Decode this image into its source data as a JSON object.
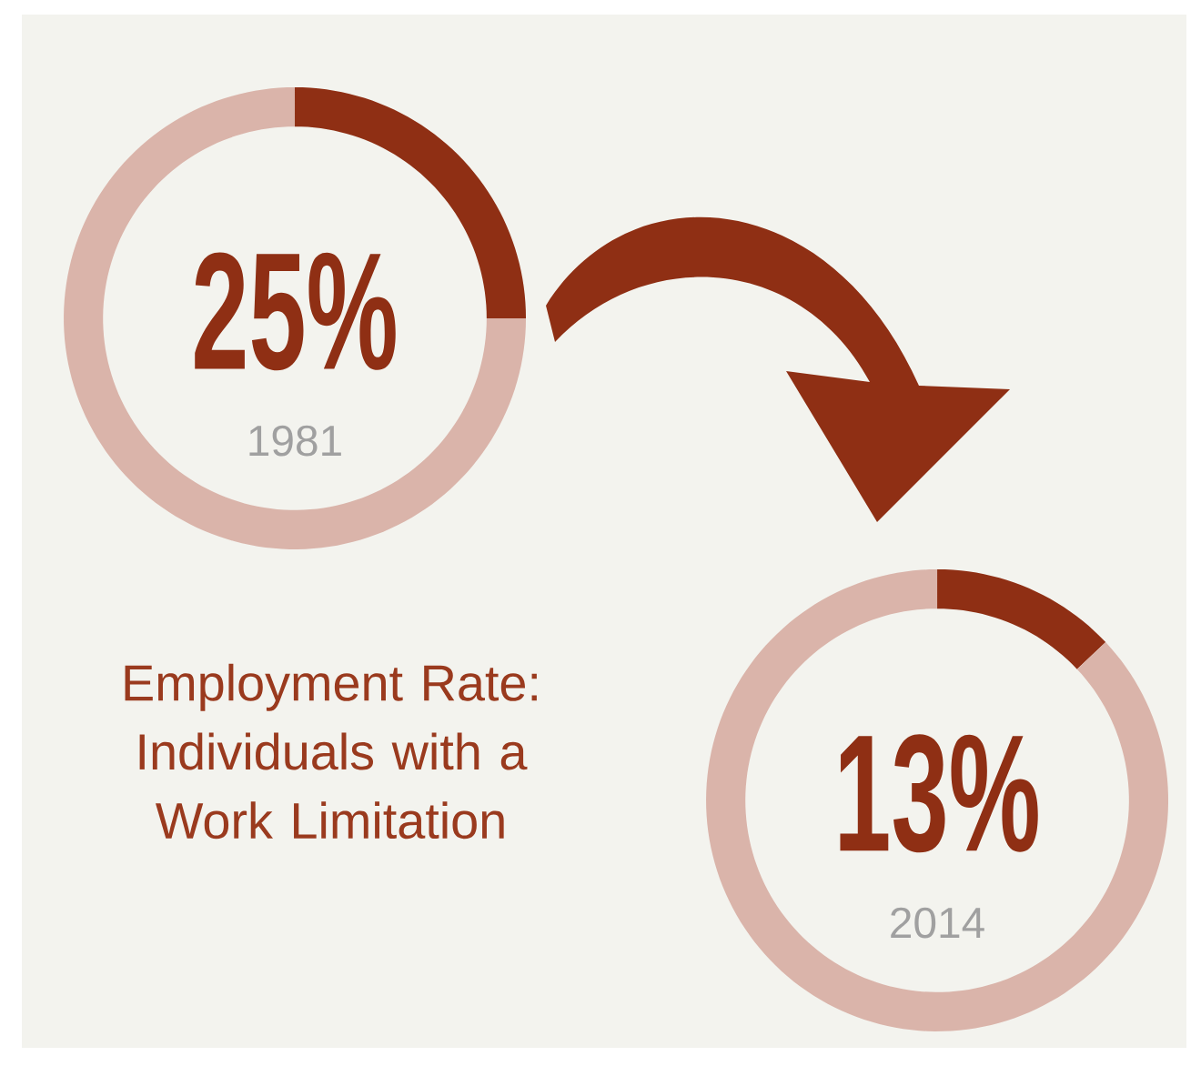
{
  "chart_data": [
    {
      "type": "donut",
      "title": "Employment Rate: Individuals with a Work Limitation",
      "categories": [
        null,
        null
      ],
      "values": [
        25,
        75
      ],
      "colors": [
        "#8f2f14",
        "#dab4aa"
      ],
      "annotations": [
        "25%",
        "1981"
      ]
    },
    {
      "type": "donut",
      "categories": [
        null,
        null
      ],
      "values": [
        13,
        87
      ],
      "colors": [
        "#8f2f14",
        "#dab4aa"
      ],
      "annotations": [
        "13%",
        "2014"
      ]
    }
  ]
}
